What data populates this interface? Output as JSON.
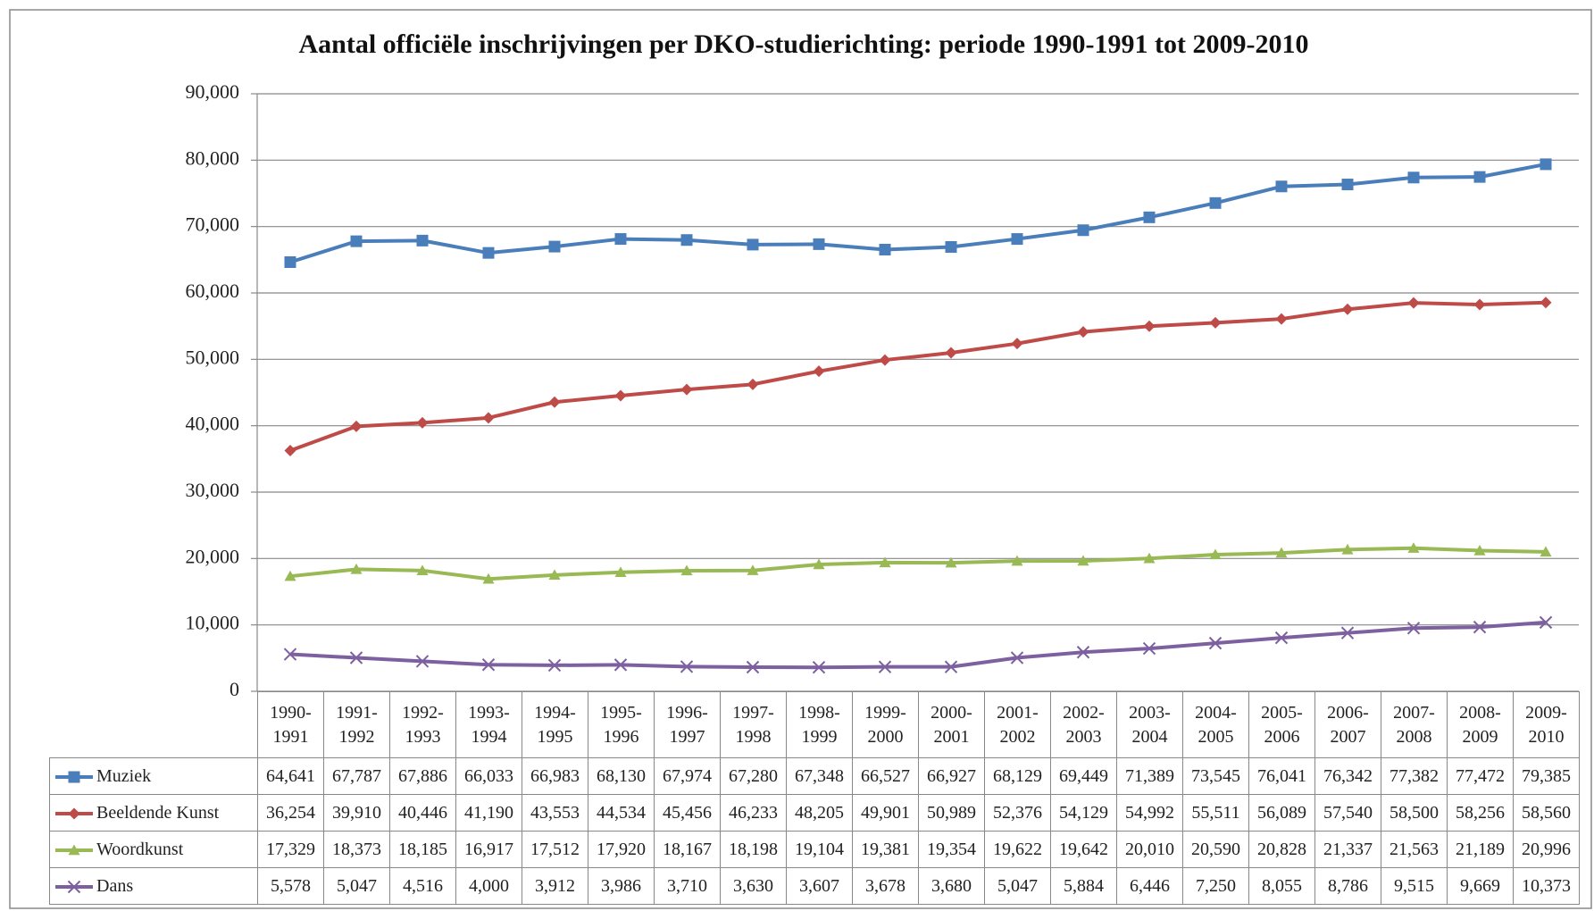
{
  "chart_data": {
    "type": "line",
    "title": "Aantal officiële inschrijvingen per DKO-studierichting: periode 1990-1991 tot 2009-2010",
    "categories": [
      "1990-1991",
      "1991-1992",
      "1992-1993",
      "1993-1994",
      "1994-1995",
      "1995-1996",
      "1996-1997",
      "1997-1998",
      "1998-1999",
      "1999-2000",
      "2000-2001",
      "2001-2002",
      "2002-2003",
      "2003-2004",
      "2004-2005",
      "2005-2006",
      "2006-2007",
      "2007-2008",
      "2008-2009",
      "2009-2010"
    ],
    "ylim": [
      0,
      90000
    ],
    "yticks": [
      {
        "value": 0,
        "label": "0"
      },
      {
        "value": 10000,
        "label": "10,000"
      },
      {
        "value": 20000,
        "label": "20,000"
      },
      {
        "value": 30000,
        "label": "30,000"
      },
      {
        "value": 40000,
        "label": "40,000"
      },
      {
        "value": 50000,
        "label": "50,000"
      },
      {
        "value": 60000,
        "label": "60,000"
      },
      {
        "value": 70000,
        "label": "70,000"
      },
      {
        "value": 80000,
        "label": "80,000"
      },
      {
        "value": 90000,
        "label": "90,000"
      }
    ],
    "grid": true,
    "legend": "data-table",
    "series": [
      {
        "name": "Muziek",
        "color": "#4a7ebb",
        "marker": "square",
        "values": [
          64641,
          67787,
          67886,
          66033,
          66983,
          68130,
          67974,
          67280,
          67348,
          66527,
          66927,
          68129,
          69449,
          71389,
          73545,
          76041,
          76342,
          77382,
          77472,
          79385
        ],
        "value_labels": [
          "64,641",
          "67,787",
          "67,886",
          "66,033",
          "66,983",
          "68,130",
          "67,974",
          "67,280",
          "67,348",
          "66,527",
          "66,927",
          "68,129",
          "69,449",
          "71,389",
          "73,545",
          "76,041",
          "76,342",
          "77,382",
          "77,472",
          "79,385"
        ]
      },
      {
        "name": "Beeldende Kunst",
        "color": "#be4b48",
        "marker": "diamond",
        "values": [
          36254,
          39910,
          40446,
          41190,
          43553,
          44534,
          45456,
          46233,
          48205,
          49901,
          50989,
          52376,
          54129,
          54992,
          55511,
          56089,
          57540,
          58500,
          58256,
          58560
        ],
        "value_labels": [
          "36,254",
          "39,910",
          "40,446",
          "41,190",
          "43,553",
          "44,534",
          "45,456",
          "46,233",
          "48,205",
          "49,901",
          "50,989",
          "52,376",
          "54,129",
          "54,992",
          "55,511",
          "56,089",
          "57,540",
          "58,500",
          "58,256",
          "58,560"
        ]
      },
      {
        "name": "Woordkunst",
        "color": "#98b954",
        "marker": "triangle",
        "values": [
          17329,
          18373,
          18185,
          16917,
          17512,
          17920,
          18167,
          18198,
          19104,
          19381,
          19354,
          19622,
          19642,
          20010,
          20590,
          20828,
          21337,
          21563,
          21189,
          20996
        ],
        "value_labels": [
          "17,329",
          "18,373",
          "18,185",
          "16,917",
          "17,512",
          "17,920",
          "18,167",
          "18,198",
          "19,104",
          "19,381",
          "19,354",
          "19,622",
          "19,642",
          "20,010",
          "20,590",
          "20,828",
          "21,337",
          "21,563",
          "21,189",
          "20,996"
        ]
      },
      {
        "name": "Dans",
        "color": "#7d60a0",
        "marker": "x",
        "values": [
          5578,
          5047,
          4516,
          4000,
          3912,
          3986,
          3710,
          3630,
          3607,
          3678,
          3680,
          5047,
          5884,
          6446,
          7250,
          8055,
          8786,
          9515,
          9669,
          10373
        ],
        "value_labels": [
          "5,578",
          "5,047",
          "4,516",
          "4,000",
          "3,912",
          "3,986",
          "3,710",
          "3,630",
          "3,607",
          "3,678",
          "3,680",
          "5,047",
          "5,884",
          "6,446",
          "7,250",
          "8,055",
          "8,786",
          "9,515",
          "9,669",
          "10,373"
        ]
      }
    ]
  }
}
